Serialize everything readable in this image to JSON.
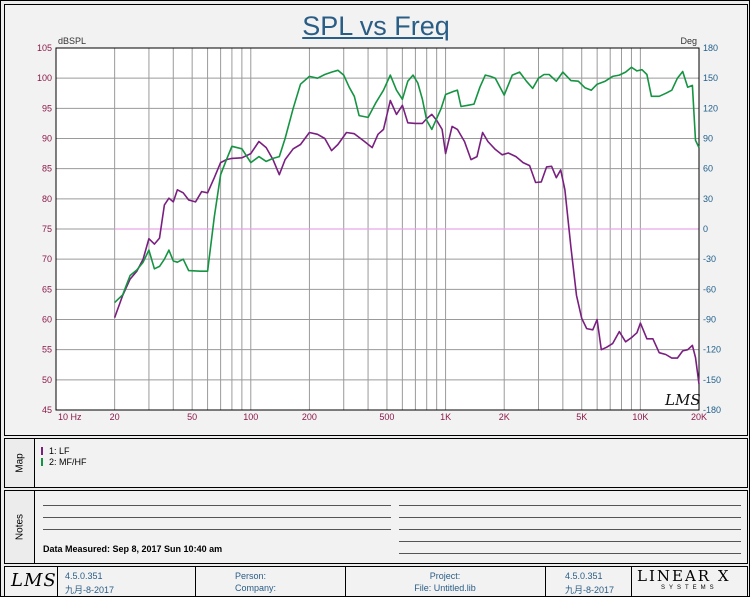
{
  "chart_data": {
    "type": "line",
    "title": "SPL vs Freq",
    "x_scale": "log",
    "xlim": [
      10,
      20000
    ],
    "x_tick_labels": [
      {
        "f": 10,
        "label": "10  Hz"
      },
      {
        "f": 20,
        "label": "20"
      },
      {
        "f": 50,
        "label": "50"
      },
      {
        "f": 100,
        "label": "100"
      },
      {
        "f": 200,
        "label": "200"
      },
      {
        "f": 500,
        "label": "500"
      },
      {
        "f": 1000,
        "label": "1K"
      },
      {
        "f": 2000,
        "label": "2K"
      },
      {
        "f": 5000,
        "label": "5K"
      },
      {
        "f": 10000,
        "label": "10K"
      },
      {
        "f": 20000,
        "label": "20K"
      }
    ],
    "ylabel": "dBSPL",
    "ylim": [
      45,
      105
    ],
    "y_ticks": [
      45,
      50,
      55,
      60,
      65,
      70,
      75,
      80,
      85,
      90,
      95,
      100,
      105
    ],
    "y2label": "Deg",
    "y2lim": [
      -180,
      180
    ],
    "y2_ticks": [
      -180,
      -150,
      -120,
      -90,
      -60,
      -30,
      0,
      30,
      60,
      90,
      120,
      150,
      180
    ],
    "grid": true,
    "reference_line": {
      "y": 75,
      "color": "#e6a8e6"
    },
    "colors": {
      "axis_left": "#8b1a4a",
      "axis_right": "#1f5f8b",
      "grid": "#9a9a9a",
      "title": "#2a5d86"
    },
    "series": [
      {
        "name": "1: LF",
        "color": "#7a1f80",
        "points": [
          [
            20,
            60.3
          ],
          [
            22,
            64
          ],
          [
            24,
            66.7
          ],
          [
            26,
            68
          ],
          [
            28,
            70
          ],
          [
            30,
            73.4
          ],
          [
            32,
            72.5
          ],
          [
            34,
            73.5
          ],
          [
            36,
            79
          ],
          [
            38,
            80.1
          ],
          [
            40,
            79.5
          ],
          [
            42,
            81.5
          ],
          [
            45,
            81
          ],
          [
            48,
            79.8
          ],
          [
            52,
            79.5
          ],
          [
            56,
            81.2
          ],
          [
            60,
            81
          ],
          [
            65,
            83.5
          ],
          [
            70,
            86
          ],
          [
            75,
            86.5
          ],
          [
            80,
            86.7
          ],
          [
            90,
            86.8
          ],
          [
            100,
            87.5
          ],
          [
            110,
            89.5
          ],
          [
            120,
            88.5
          ],
          [
            130,
            86.5
          ],
          [
            140,
            84
          ],
          [
            150,
            86.5
          ],
          [
            165,
            88.3
          ],
          [
            180,
            89
          ],
          [
            200,
            91
          ],
          [
            220,
            90.7
          ],
          [
            240,
            90
          ],
          [
            260,
            88
          ],
          [
            280,
            89
          ],
          [
            310,
            91
          ],
          [
            340,
            90.8
          ],
          [
            380,
            89.6
          ],
          [
            420,
            88.5
          ],
          [
            450,
            90.7
          ],
          [
            480,
            91.5
          ],
          [
            520,
            96.3
          ],
          [
            560,
            94
          ],
          [
            600,
            95.5
          ],
          [
            640,
            92.6
          ],
          [
            700,
            92.5
          ],
          [
            760,
            92.5
          ],
          [
            800,
            93.3
          ],
          [
            850,
            94
          ],
          [
            900,
            93
          ],
          [
            960,
            91.5
          ],
          [
            1000,
            87.5
          ],
          [
            1080,
            92
          ],
          [
            1150,
            91.5
          ],
          [
            1250,
            89.5
          ],
          [
            1350,
            86.5
          ],
          [
            1450,
            87
          ],
          [
            1550,
            91
          ],
          [
            1650,
            89.5
          ],
          [
            1800,
            88.2
          ],
          [
            1950,
            87.3
          ],
          [
            2100,
            87.6
          ],
          [
            2300,
            87
          ],
          [
            2500,
            86
          ],
          [
            2700,
            85.5
          ],
          [
            2900,
            82.7
          ],
          [
            3100,
            82.8
          ],
          [
            3300,
            85.3
          ],
          [
            3500,
            85.4
          ],
          [
            3700,
            83.5
          ],
          [
            3900,
            84.8
          ],
          [
            4100,
            81.5
          ],
          [
            4400,
            72
          ],
          [
            4700,
            64
          ],
          [
            5000,
            60.2
          ],
          [
            5300,
            58.5
          ],
          [
            5700,
            58.3
          ],
          [
            6000,
            60
          ],
          [
            6300,
            55
          ],
          [
            6700,
            55.4
          ],
          [
            7200,
            56
          ],
          [
            7800,
            58
          ],
          [
            8400,
            56.3
          ],
          [
            9000,
            57
          ],
          [
            9600,
            57.8
          ],
          [
            10000,
            59.4
          ],
          [
            10800,
            56.8
          ],
          [
            11600,
            56.8
          ],
          [
            12500,
            54.5
          ],
          [
            13500,
            54.2
          ],
          [
            14500,
            53.6
          ],
          [
            15500,
            53.6
          ],
          [
            16500,
            54.8
          ],
          [
            17500,
            55
          ],
          [
            18500,
            55.7
          ],
          [
            19200,
            53.7
          ],
          [
            20000,
            49.3
          ]
        ]
      },
      {
        "name": "2: MF/HF",
        "color": "#159442",
        "points": [
          [
            20,
            62.8
          ],
          [
            22,
            64.1
          ],
          [
            24,
            67.3
          ],
          [
            26,
            68.2
          ],
          [
            28,
            69.5
          ],
          [
            30,
            71.5
          ],
          [
            32,
            68.4
          ],
          [
            34,
            68.8
          ],
          [
            36,
            70
          ],
          [
            38,
            71.5
          ],
          [
            40,
            69.7
          ],
          [
            42,
            69.5
          ],
          [
            45,
            70
          ],
          [
            48,
            68.1
          ],
          [
            55,
            68
          ],
          [
            60,
            68
          ],
          [
            65,
            77
          ],
          [
            70,
            84
          ],
          [
            75,
            86.5
          ],
          [
            80,
            88.7
          ],
          [
            90,
            88.3
          ],
          [
            100,
            86
          ],
          [
            110,
            87
          ],
          [
            120,
            86.2
          ],
          [
            130,
            86.7
          ],
          [
            140,
            87
          ],
          [
            150,
            90
          ],
          [
            165,
            95
          ],
          [
            180,
            99
          ],
          [
            200,
            100.3
          ],
          [
            220,
            100
          ],
          [
            240,
            100.6
          ],
          [
            260,
            101
          ],
          [
            280,
            101.3
          ],
          [
            300,
            100.5
          ],
          [
            320,
            98.5
          ],
          [
            340,
            97
          ],
          [
            360,
            93.8
          ],
          [
            400,
            93.5
          ],
          [
            440,
            96
          ],
          [
            480,
            98
          ],
          [
            520,
            100.5
          ],
          [
            560,
            98
          ],
          [
            600,
            96.5
          ],
          [
            640,
            99.5
          ],
          [
            680,
            100.5
          ],
          [
            720,
            99.2
          ],
          [
            760,
            96.5
          ],
          [
            800,
            93
          ],
          [
            850,
            91.5
          ],
          [
            950,
            95
          ],
          [
            1000,
            97.3
          ],
          [
            1100,
            97.8
          ],
          [
            1150,
            98
          ],
          [
            1200,
            95.3
          ],
          [
            1300,
            95.5
          ],
          [
            1400,
            95.7
          ],
          [
            1500,
            98.5
          ],
          [
            1600,
            100.5
          ],
          [
            1700,
            100.3
          ],
          [
            1800,
            100
          ],
          [
            2000,
            97.2
          ],
          [
            2200,
            100.5
          ],
          [
            2400,
            101
          ],
          [
            2600,
            99.5
          ],
          [
            2800,
            98.3
          ],
          [
            3000,
            100
          ],
          [
            3200,
            100.6
          ],
          [
            3400,
            100.6
          ],
          [
            3700,
            99.5
          ],
          [
            4000,
            101
          ],
          [
            4400,
            99.6
          ],
          [
            4800,
            99.5
          ],
          [
            5200,
            98.4
          ],
          [
            5600,
            98
          ],
          [
            6000,
            99
          ],
          [
            6600,
            99.5
          ],
          [
            7200,
            100.3
          ],
          [
            7800,
            100.5
          ],
          [
            8400,
            101
          ],
          [
            9000,
            101.8
          ],
          [
            9600,
            101.2
          ],
          [
            10200,
            101.4
          ],
          [
            10800,
            100.6
          ],
          [
            11400,
            97
          ],
          [
            12500,
            97
          ],
          [
            13500,
            97.5
          ],
          [
            14500,
            98
          ],
          [
            15500,
            100
          ],
          [
            16500,
            101.1
          ],
          [
            17500,
            98.5
          ],
          [
            18500,
            98.8
          ],
          [
            19200,
            89.7
          ],
          [
            20000,
            88.5
          ]
        ]
      }
    ]
  },
  "map": {
    "label": "Map",
    "legend": [
      {
        "text": "1: LF",
        "color": "#7a1f80"
      },
      {
        "text": "2: MF/HF",
        "color": "#159442"
      }
    ]
  },
  "notes": {
    "label": "Notes",
    "data_measured": "Data Measured: Sep 8, 2017 Sun 10:40 am"
  },
  "footer": {
    "logo_text": "LMS",
    "version_left": "4.5.0.351",
    "date_left": "九月-8-2017",
    "person_label": "Person:",
    "company_label": "Company:",
    "project_label": "Project:",
    "file_label": "File: Untitled.lib",
    "version_right": "4.5.0.351",
    "date_right": "九月-8-2017",
    "brand_name": "LINEAR X",
    "brand_sub": "SYSTEMS"
  },
  "watermark": "LMS"
}
